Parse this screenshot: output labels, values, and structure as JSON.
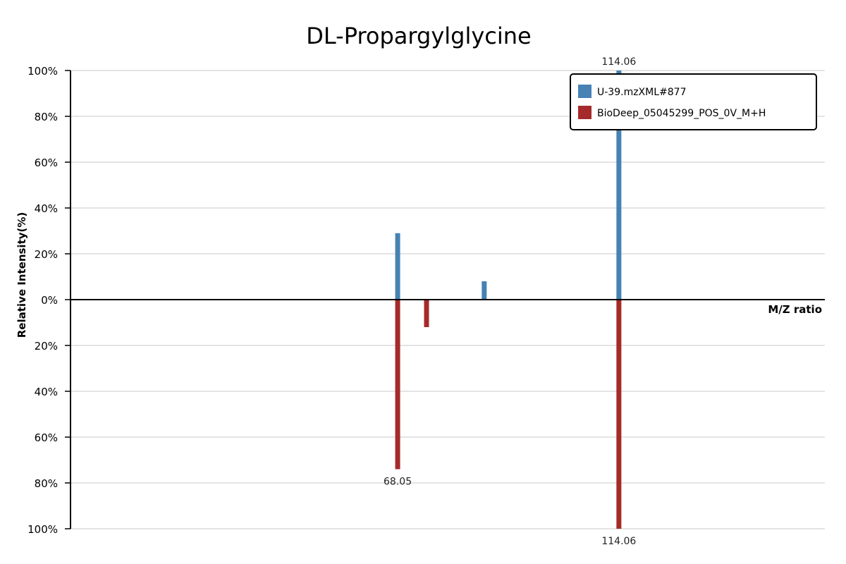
{
  "chart_data": {
    "type": "bar",
    "title": "DL-Propargylglycine",
    "xlabel": "M/Z ratio",
    "ylabel": "Relative Intensity(%)",
    "ylim": [
      -100,
      100
    ],
    "y_ticks": [
      "100%",
      "80%",
      "60%",
      "40%",
      "20%",
      "0%",
      "20%",
      "40%",
      "60%",
      "80%",
      "100%"
    ],
    "grid": true,
    "legend_position": "top-right",
    "series": [
      {
        "name": "U-39.mzXML#877",
        "color": "#4682b4",
        "direction": "up",
        "peaks": [
          {
            "mz": 68.05,
            "intensity": 29
          },
          {
            "mz": 86.05,
            "intensity": 8
          },
          {
            "mz": 114.06,
            "intensity": 100,
            "label": "114.06"
          }
        ]
      },
      {
        "name": "BioDeep_05045299_POS_0V_M+H",
        "color": "#a52a2a",
        "direction": "down",
        "peaks": [
          {
            "mz": 68.05,
            "intensity": 74,
            "label": "68.05"
          },
          {
            "mz": 74.05,
            "intensity": 12
          },
          {
            "mz": 114.06,
            "intensity": 100,
            "label": "114.06"
          }
        ]
      }
    ]
  }
}
